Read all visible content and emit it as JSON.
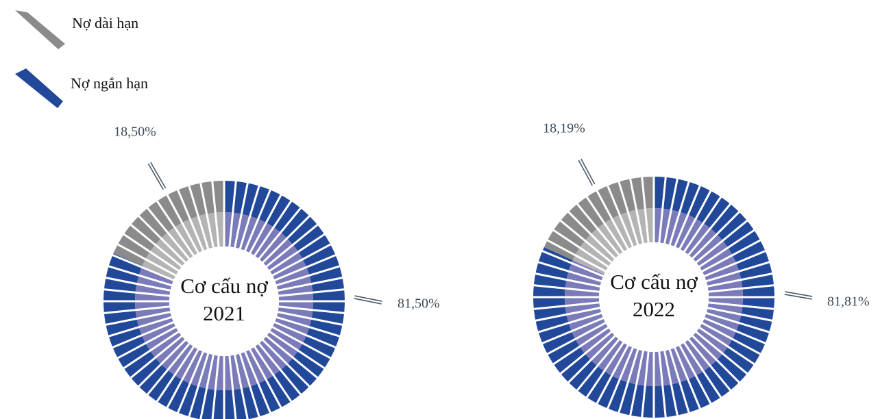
{
  "legend": {
    "items": [
      {
        "name": "Nợ dài hạn",
        "color": "#8b8b8c"
      },
      {
        "name": "Nợ ngắn hạn",
        "color": "#22489a"
      }
    ]
  },
  "chart_data": [
    {
      "type": "pie",
      "title": "Cơ cấu nợ 2021",
      "values": [
        18.5,
        81.5
      ],
      "value_labels": [
        "18,50%",
        "81,50%"
      ],
      "inner_colors": [
        "#b4b4b4",
        "#7b7bba"
      ]
    },
    {
      "type": "pie",
      "title": "Cơ cấu nợ 2022",
      "values": [
        18.19,
        81.81
      ],
      "value_labels": [
        "18,19%",
        "81,81%"
      ],
      "inner_colors": [
        "#b4b4b4",
        "#7b7bba"
      ]
    }
  ]
}
